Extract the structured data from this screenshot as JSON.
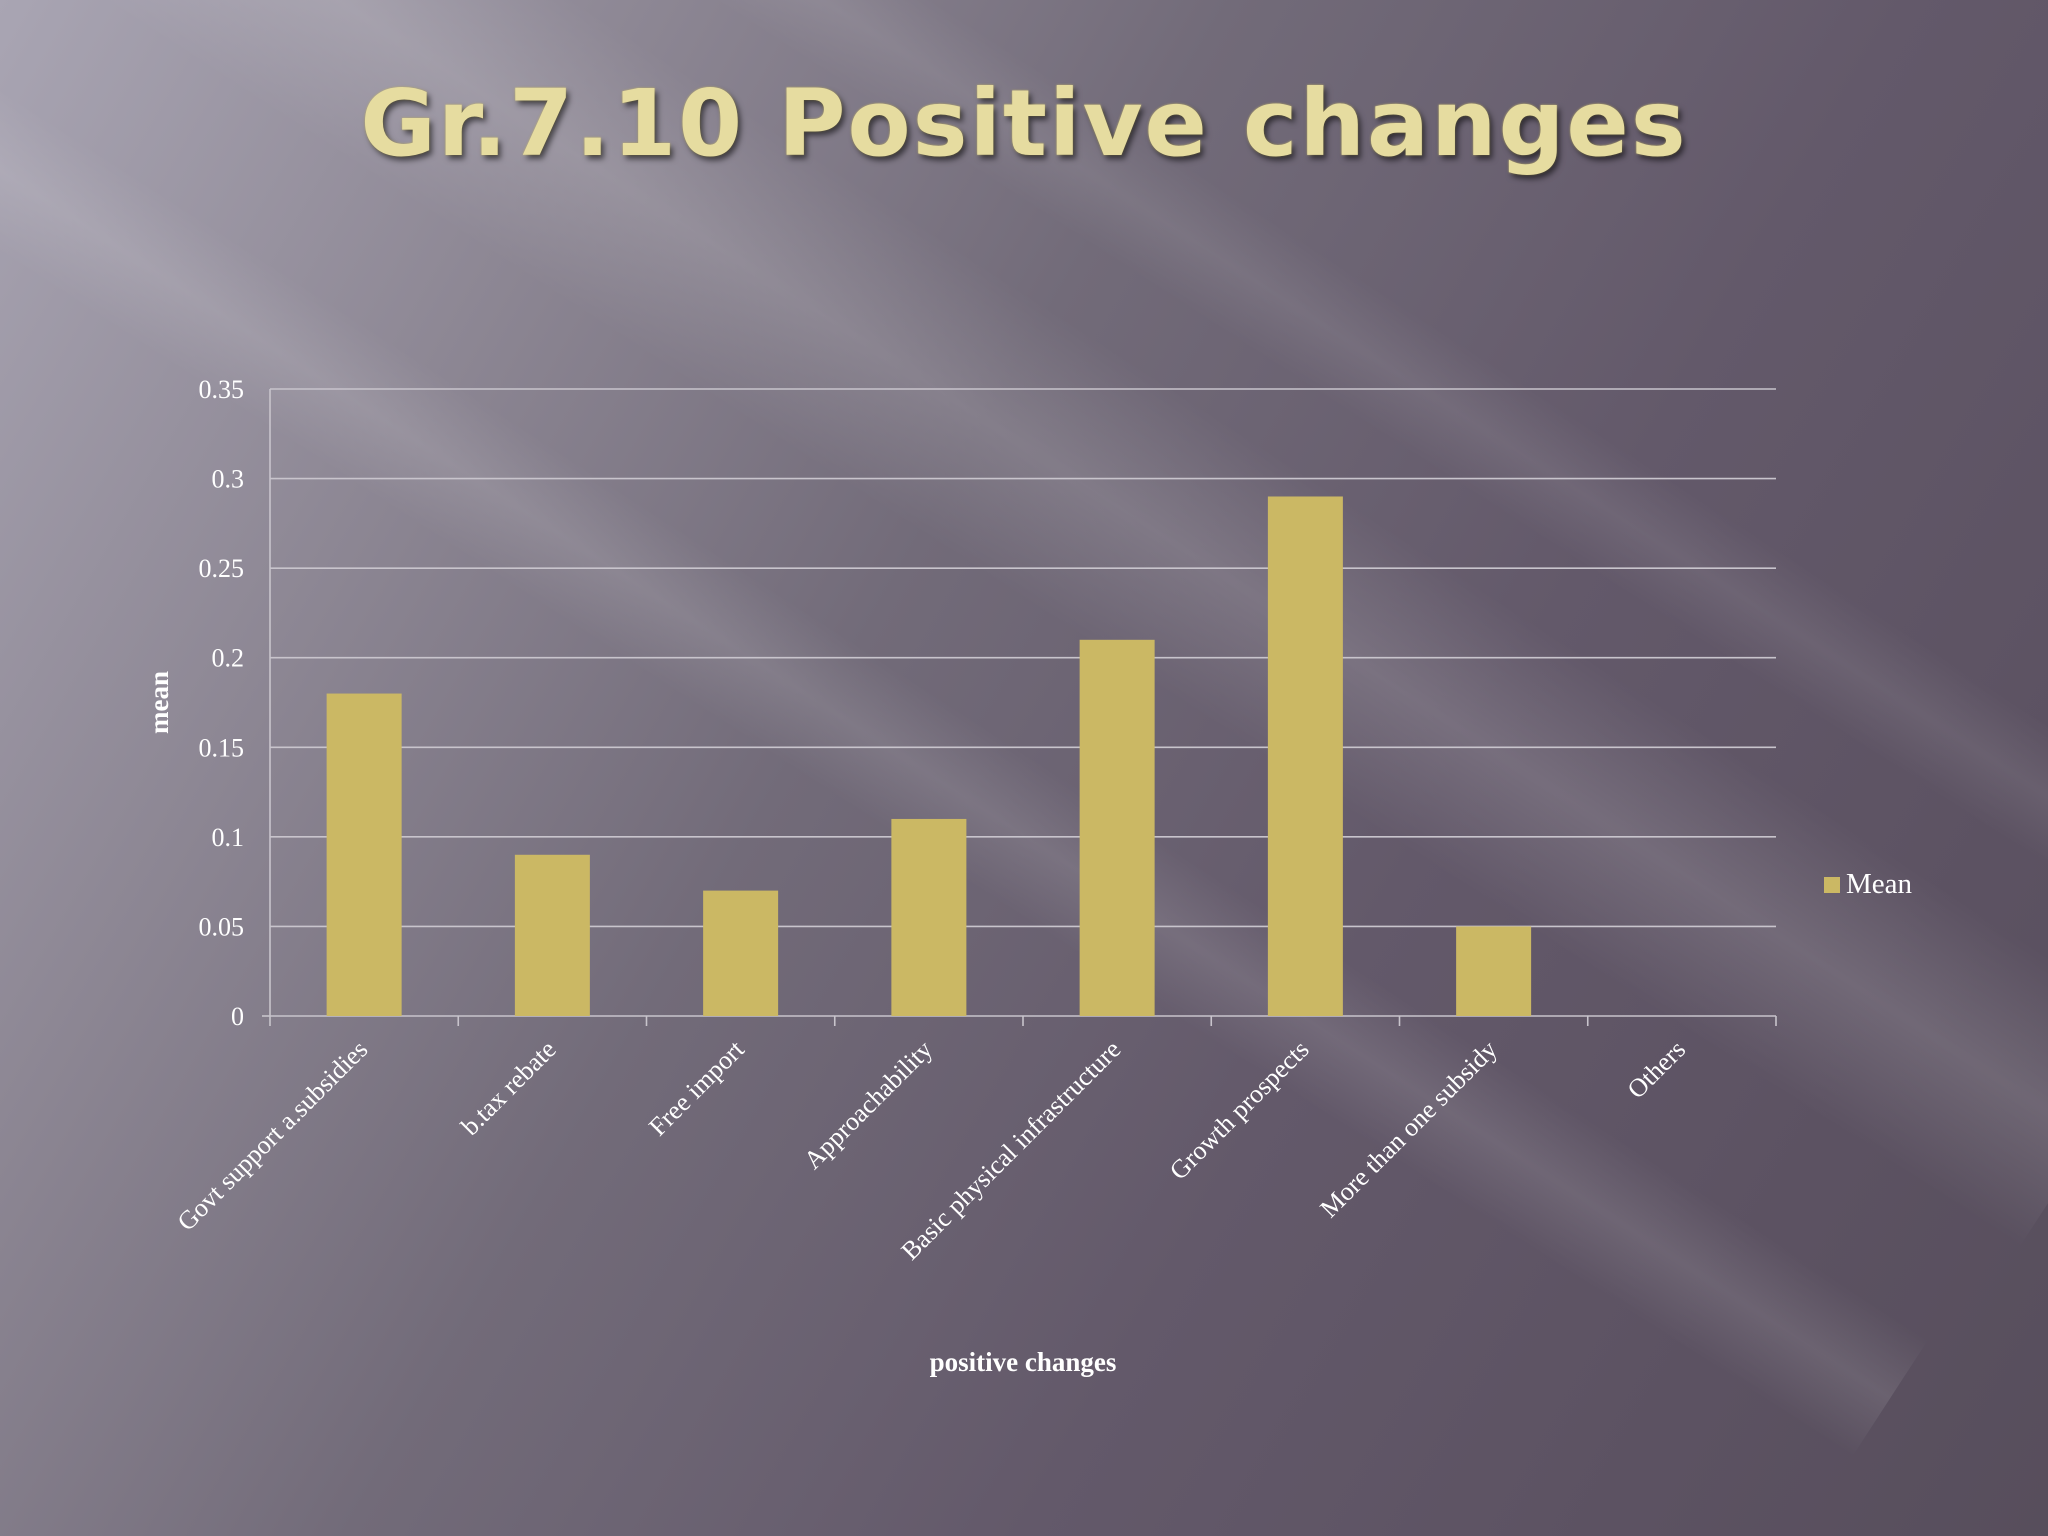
{
  "slide": {
    "title": "Gr.7.10 Positive changes"
  },
  "colors": {
    "bar": "#cbb864",
    "title": "#e6dca0",
    "grid": "#c8c4cc",
    "text": "#ffffff"
  },
  "chart_data": {
    "type": "bar",
    "title": "",
    "xlabel": "positive changes",
    "ylabel": "mean",
    "categories": [
      "Govt support a.subsidies",
      "b.tax rebate",
      "Free import",
      "Approachability",
      "Basic physical infrastructure",
      "Growth prospects",
      "More than one subsidy",
      "Others"
    ],
    "series": [
      {
        "name": "Mean",
        "values": [
          0.18,
          0.09,
          0.07,
          0.11,
          0.21,
          0.29,
          0.05,
          0
        ]
      }
    ],
    "ylim": [
      0,
      0.35
    ],
    "yticks": [
      "0",
      "0.05",
      "0.1",
      "0.15",
      "0.2",
      "0.25",
      "0.3",
      "0.35"
    ],
    "grid": true,
    "legend_position": "right"
  }
}
